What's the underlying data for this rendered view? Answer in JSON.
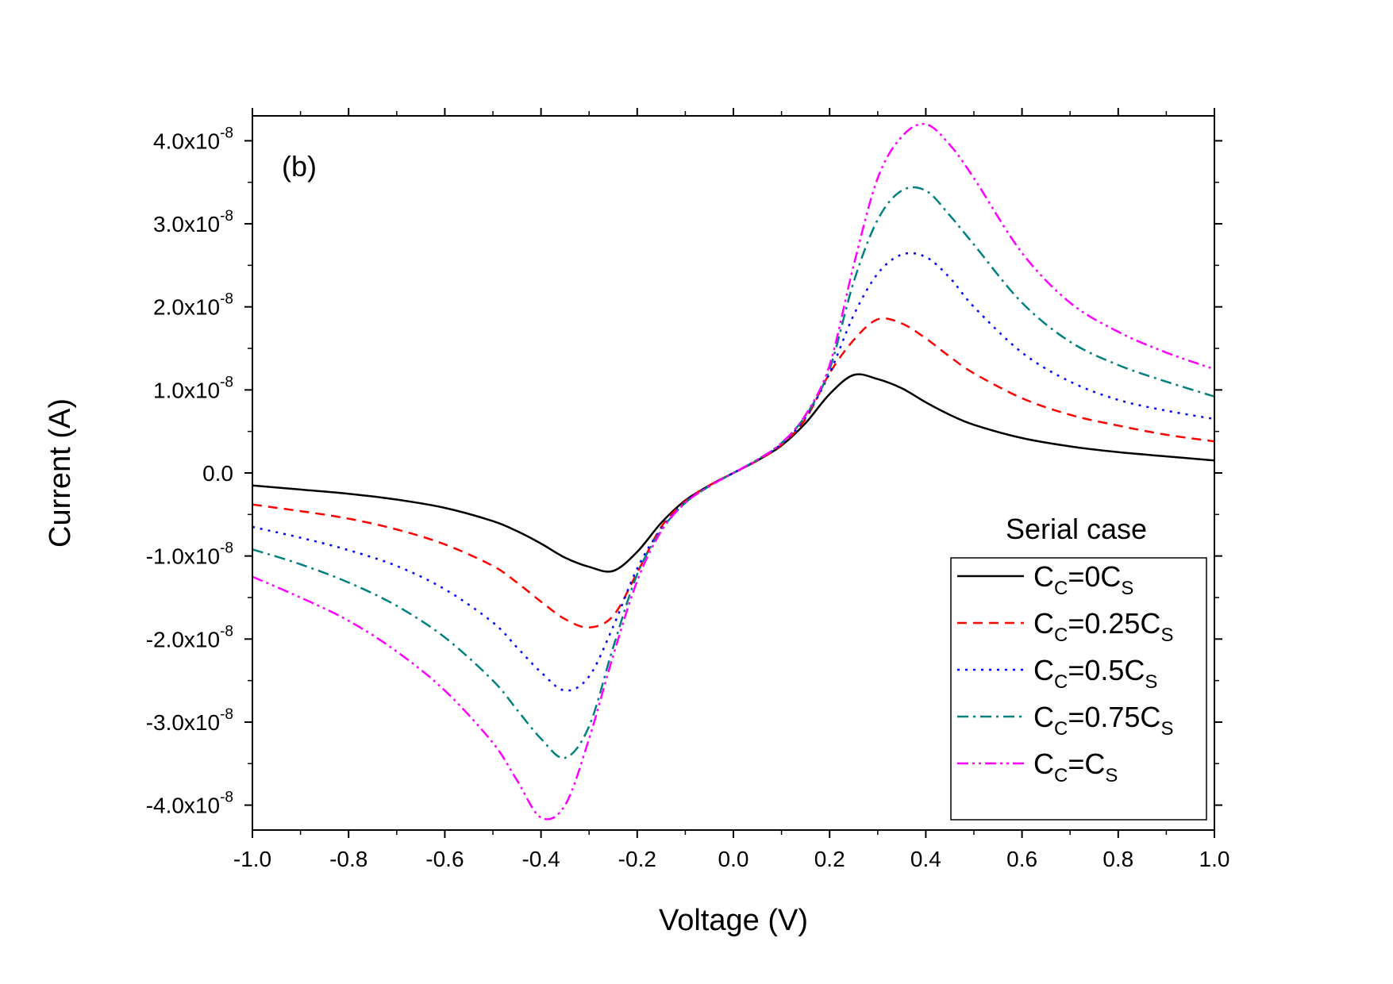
{
  "chart_data": {
    "type": "line",
    "title": "",
    "panel_label": "(b)",
    "xlabel": "Voltage (V)",
    "ylabel": "Current (A)",
    "xlim": [
      -1.0,
      1.0
    ],
    "ylim": [
      -4.3e-08,
      4.3e-08
    ],
    "x_ticks": [
      -1.0,
      -0.8,
      -0.6,
      -0.4,
      -0.2,
      0.0,
      0.2,
      0.4,
      0.6,
      0.8,
      1.0
    ],
    "x_tick_labels": [
      "-1.0",
      "-0.8",
      "-0.6",
      "-0.4",
      "-0.2",
      "0.0",
      "0.2",
      "0.4",
      "0.6",
      "0.8",
      "1.0"
    ],
    "y_ticks": [
      {
        "value": -4e-08,
        "mantissa": "-4.0x10",
        "exponent": "-8"
      },
      {
        "value": -3e-08,
        "mantissa": "-3.0x10",
        "exponent": "-8"
      },
      {
        "value": -2e-08,
        "mantissa": "-2.0x10",
        "exponent": "-8"
      },
      {
        "value": -1e-08,
        "mantissa": "-1.0x10",
        "exponent": "-8"
      },
      {
        "value": 0.0,
        "mantissa": "0.0",
        "exponent": ""
      },
      {
        "value": 1e-08,
        "mantissa": "1.0x10",
        "exponent": "-8"
      },
      {
        "value": 2e-08,
        "mantissa": "2.0x10",
        "exponent": "-8"
      },
      {
        "value": 3e-08,
        "mantissa": "3.0x10",
        "exponent": "-8"
      },
      {
        "value": 4e-08,
        "mantissa": "4.0x10",
        "exponent": "-8"
      }
    ],
    "legend": {
      "title": "Serial case",
      "position": "lower-right"
    },
    "x": [
      -1.0,
      -0.9,
      -0.8,
      -0.7,
      -0.6,
      -0.5,
      -0.45,
      -0.4,
      -0.35,
      -0.3,
      -0.25,
      -0.2,
      -0.15,
      -0.1,
      -0.05,
      0.0,
      0.05,
      0.1,
      0.15,
      0.2,
      0.25,
      0.3,
      0.35,
      0.4,
      0.45,
      0.5,
      0.6,
      0.7,
      0.8,
      0.9,
      1.0
    ],
    "series": [
      {
        "name": "CC=0CS",
        "label_parts": [
          "C",
          "C",
          "=0C",
          "S"
        ],
        "color": "#000000",
        "dash": "solid",
        "values": [
          -1.5e-09,
          -2e-09,
          -2.5e-09,
          -3.2e-09,
          -4.2e-09,
          -5.8e-09,
          -7e-09,
          -8.5e-09,
          -1.02e-08,
          -1.13e-08,
          -1.18e-08,
          -9.5e-09,
          -6e-09,
          -3.3e-09,
          -1.5e-09,
          0.0,
          1.5e-09,
          3.3e-09,
          6e-09,
          9.5e-09,
          1.18e-08,
          1.13e-08,
          1.02e-08,
          8.5e-09,
          7e-09,
          5.8e-09,
          4.2e-09,
          3.2e-09,
          2.5e-09,
          2e-09,
          1.5e-09
        ]
      },
      {
        "name": "CC=0.25CS",
        "label_parts": [
          "C",
          "C",
          "=0.25C",
          "S"
        ],
        "color": "#ff0000",
        "dash": "dash",
        "values": [
          -3.8e-09,
          -4.6e-09,
          -5.5e-09,
          -6.8e-09,
          -8.6e-09,
          -1.12e-08,
          -1.32e-08,
          -1.55e-08,
          -1.76e-08,
          -1.86e-08,
          -1.72e-08,
          -1.2e-08,
          -6.5e-09,
          -3.4e-09,
          -1.5e-09,
          0.0,
          1.5e-09,
          3.4e-09,
          6.5e-09,
          1.2e-08,
          1.6e-08,
          1.85e-08,
          1.8e-08,
          1.62e-08,
          1.4e-08,
          1.2e-08,
          9e-09,
          7e-09,
          5.7e-09,
          4.6e-09,
          3.8e-09
        ]
      },
      {
        "name": "CC=0.5CS",
        "label_parts": [
          "C",
          "C",
          "=0.5C",
          "S"
        ],
        "color": "#0000ff",
        "dash": "dot",
        "values": [
          -6.5e-09,
          -7.8e-09,
          -9.3e-09,
          -1.12e-08,
          -1.4e-08,
          -1.8e-08,
          -2.1e-08,
          -2.4e-08,
          -2.62e-08,
          -2.45e-08,
          -1.85e-08,
          -1.15e-08,
          -6.7e-09,
          -3.5e-09,
          -1.6e-09,
          0.0,
          1.6e-09,
          3.5e-09,
          6.7e-09,
          1.2e-08,
          1.9e-08,
          2.4e-08,
          2.63e-08,
          2.6e-08,
          2.35e-08,
          2e-08,
          1.45e-08,
          1.1e-08,
          8.8e-09,
          7.5e-09,
          6.5e-09
        ]
      },
      {
        "name": "CC=0.75CS",
        "label_parts": [
          "C",
          "C",
          "=0.75C",
          "S"
        ],
        "color": "#008080",
        "dash": "dashdot",
        "values": [
          -9.2e-09,
          -1.1e-08,
          -1.32e-08,
          -1.6e-08,
          -1.98e-08,
          -2.5e-08,
          -2.85e-08,
          -3.2e-08,
          -3.43e-08,
          -3.05e-08,
          -2.1e-08,
          -1.22e-08,
          -6.9e-09,
          -3.6e-09,
          -1.6e-09,
          0.0,
          1.6e-09,
          3.6e-09,
          6.9e-09,
          1.25e-08,
          2.3e-08,
          3.05e-08,
          3.4e-08,
          3.4e-08,
          3.1e-08,
          2.75e-08,
          2.05e-08,
          1.58e-08,
          1.3e-08,
          1.1e-08,
          9.2e-09
        ]
      },
      {
        "name": "CC=CS",
        "label_parts": [
          "C",
          "C",
          "=C",
          "S"
        ],
        "color": "#ff00ff",
        "dash": "dashdotdot",
        "values": [
          -1.25e-08,
          -1.5e-08,
          -1.78e-08,
          -2.15e-08,
          -2.62e-08,
          -3.25e-08,
          -3.7e-08,
          -4.15e-08,
          -4e-08,
          -3.2e-08,
          -2.2e-08,
          -1.3e-08,
          -7e-09,
          -3.6e-09,
          -1.6e-09,
          0.0,
          1.6e-09,
          3.6e-09,
          7e-09,
          1.3e-08,
          2.5e-08,
          3.55e-08,
          4.05e-08,
          4.2e-08,
          3.95e-08,
          3.55e-08,
          2.65e-08,
          2.05e-08,
          1.7e-08,
          1.45e-08,
          1.25e-08
        ]
      }
    ]
  }
}
